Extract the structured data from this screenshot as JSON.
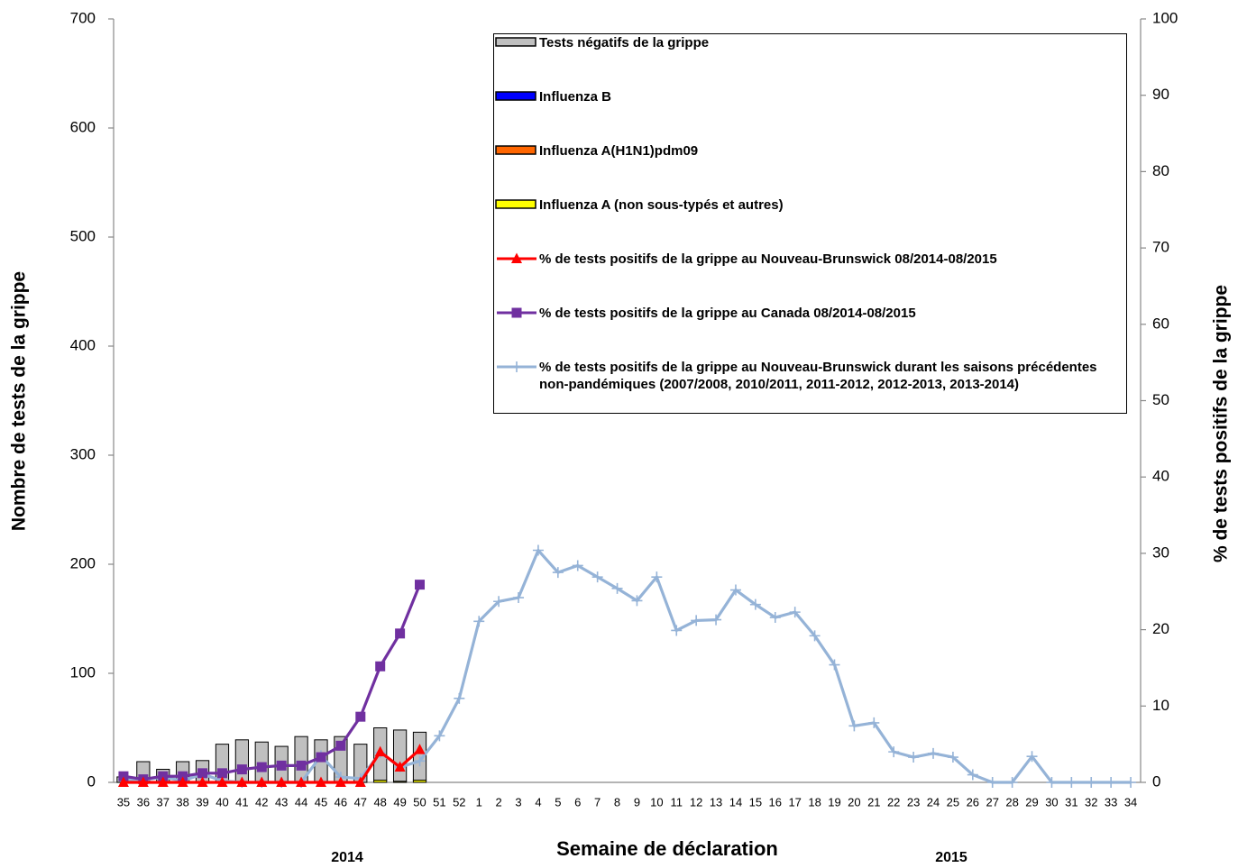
{
  "chart_data": {
    "type": "bar-line",
    "y_label": "Nombre de tests de la grippe",
    "y2_label": "% de tests positifs de la grippe",
    "x_label": "Semaine de déclaration",
    "annotations": [
      "2014",
      "2015"
    ],
    "categories": [
      "35",
      "36",
      "37",
      "38",
      "39",
      "40",
      "41",
      "42",
      "43",
      "44",
      "45",
      "46",
      "47",
      "48",
      "49",
      "50",
      "51",
      "52",
      "1",
      "2",
      "3",
      "4",
      "5",
      "6",
      "7",
      "8",
      "9",
      "10",
      "11",
      "12",
      "13",
      "14",
      "15",
      "16",
      "17",
      "18",
      "19",
      "20",
      "21",
      "22",
      "23",
      "24",
      "25",
      "26",
      "27",
      "28",
      "29",
      "30",
      "31",
      "32",
      "33",
      "34"
    ],
    "ylim": [
      0,
      700
    ],
    "yticks": [
      0,
      100,
      200,
      300,
      400,
      500,
      600,
      700
    ],
    "y2lim": [
      0,
      100
    ],
    "y2ticks": [
      0,
      10,
      20,
      30,
      40,
      50,
      60,
      70,
      80,
      90,
      100
    ],
    "series": [
      {
        "name": "Tests négatifs de la grippe",
        "kind": "bar",
        "color": "#c0c0c0",
        "values": [
          5,
          19,
          12,
          19,
          20,
          35,
          39,
          37,
          33,
          42,
          39,
          42,
          35,
          48,
          47,
          44,
          null,
          null,
          null,
          null,
          null,
          null,
          null,
          null,
          null,
          null,
          null,
          null,
          null,
          null,
          null,
          null,
          null,
          null,
          null,
          null,
          null,
          null,
          null,
          null,
          null,
          null,
          null,
          null,
          null,
          null,
          null,
          null,
          null,
          null,
          null,
          null
        ]
      },
      {
        "name": "Influenza B",
        "kind": "bar",
        "color": "#0000ff",
        "values": [
          0,
          0,
          0,
          0,
          0,
          0,
          0,
          0,
          0,
          0,
          0,
          0,
          0,
          0,
          0,
          0,
          null,
          null,
          null,
          null,
          null,
          null,
          null,
          null,
          null,
          null,
          null,
          null,
          null,
          null,
          null,
          null,
          null,
          null,
          null,
          null,
          null,
          null,
          null,
          null,
          null,
          null,
          null,
          null,
          null,
          null,
          null,
          null,
          null,
          null,
          null,
          null
        ]
      },
      {
        "name": "Influenza A(H1N1)pdm09",
        "kind": "bar",
        "color": "#ff6600",
        "values": [
          0,
          0,
          0,
          0,
          0,
          0,
          0,
          0,
          0,
          0,
          0,
          0,
          0,
          0,
          0,
          0,
          null,
          null,
          null,
          null,
          null,
          null,
          null,
          null,
          null,
          null,
          null,
          null,
          null,
          null,
          null,
          null,
          null,
          null,
          null,
          null,
          null,
          null,
          null,
          null,
          null,
          null,
          null,
          null,
          null,
          null,
          null,
          null,
          null,
          null,
          null,
          null
        ]
      },
      {
        "name": " Influenza A (non sous-typés et autres)",
        "kind": "bar",
        "color": "#ffff00",
        "values": [
          0,
          0,
          0,
          0,
          0,
          0,
          0,
          0,
          0,
          0,
          0,
          0,
          0,
          2,
          1,
          2,
          null,
          null,
          null,
          null,
          null,
          null,
          null,
          null,
          null,
          null,
          null,
          null,
          null,
          null,
          null,
          null,
          null,
          null,
          null,
          null,
          null,
          null,
          null,
          null,
          null,
          null,
          null,
          null,
          null,
          null,
          null,
          null,
          null,
          null,
          null,
          null
        ]
      },
      {
        "name": "% de tests positifs de la grippe  au Nouveau-Brunswick 08/2014-08/2015",
        "kind": "line",
        "marker": "triangle",
        "axis": "y2",
        "color": "#ff0000",
        "values": [
          0,
          0,
          0,
          0,
          0,
          0,
          0,
          0,
          0,
          0,
          0,
          0,
          0,
          4,
          2,
          4.3,
          null,
          null,
          null,
          null,
          null,
          null,
          null,
          null,
          null,
          null,
          null,
          null,
          null,
          null,
          null,
          null,
          null,
          null,
          null,
          null,
          null,
          null,
          null,
          null,
          null,
          null,
          null,
          null,
          null,
          null,
          null,
          null,
          null,
          null,
          null,
          null
        ]
      },
      {
        "name": "% de tests positifs de la grippe  au Canada 08/2014-08/2015",
        "kind": "line",
        "marker": "square",
        "axis": "y2",
        "color": "#7030a0",
        "values": [
          0.8,
          0.4,
          0.8,
          0.8,
          1.2,
          1.2,
          1.7,
          2.0,
          2.2,
          2.2,
          3.3,
          4.8,
          8.6,
          15.2,
          19.5,
          25.9,
          null,
          null,
          null,
          null,
          null,
          null,
          null,
          null,
          null,
          null,
          null,
          null,
          null,
          null,
          null,
          null,
          null,
          null,
          null,
          null,
          null,
          null,
          null,
          null,
          null,
          null,
          null,
          null,
          null,
          null,
          null,
          null,
          null,
          null,
          null,
          null
        ]
      },
      {
        "name": "% de tests positifs de la grippe  au Nouveau-Brunswick durant les saisons précédentes non-pandémiques (2007/2008, 2010/2011, 2011-2012, 2012-2013, 2013-2014)",
        "kind": "line",
        "marker": "plus",
        "axis": "y2",
        "color": "#95b3d7",
        "values": [
          0.4,
          0.3,
          0.7,
          0.2,
          1.1,
          0.2,
          0,
          0,
          0,
          0,
          3.5,
          0.7,
          0.5,
          3.9,
          2.0,
          2.8,
          6.1,
          11.0,
          21.1,
          23.7,
          24.2,
          30.4,
          27.5,
          28.4,
          26.9,
          25.4,
          23.8,
          26.9,
          19.9,
          21.2,
          21.3,
          25.2,
          23.3,
          21.6,
          22.3,
          19.2,
          15.4,
          7.4,
          7.8,
          4.0,
          3.3,
          3.8,
          3.3,
          1.0,
          0,
          0,
          3.4,
          0,
          0,
          0,
          0,
          0
        ]
      }
    ]
  }
}
